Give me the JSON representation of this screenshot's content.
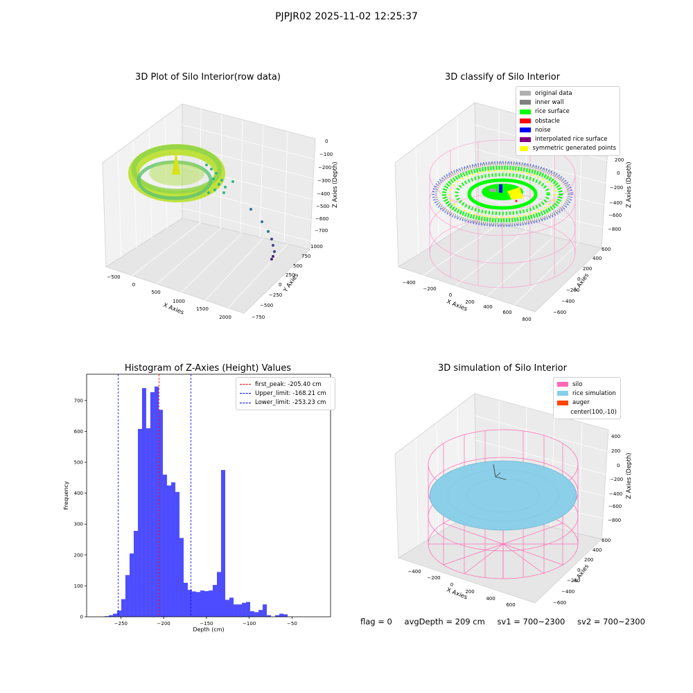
{
  "suptitle": "PJPJR02 2025-11-02 12:25:37",
  "plots": {
    "raw": {
      "title": "3D Plot of Silo Interior(row data)",
      "xlabel": "X Axies",
      "ylabel": "Y Axies",
      "zlabel": "Z Axies (Depth)",
      "xticks": [
        "−500",
        "0",
        "500",
        "1000",
        "1500",
        "2000"
      ],
      "yticks": [
        "−750",
        "−500",
        "−250",
        "0",
        "250",
        "500",
        "750",
        "1000"
      ],
      "zticks": [
        "0",
        "−100",
        "−200",
        "−300",
        "−400",
        "−500",
        "−600",
        "−700"
      ]
    },
    "classify": {
      "title": "3D classify of Silo Interior",
      "xlabel": "X Axies",
      "ylabel": "Y Axies",
      "zlabel": "Z Axies (Depth)",
      "xticks": [
        "−400",
        "−200",
        "0",
        "200",
        "400",
        "600",
        "800"
      ],
      "yticks": [
        "−600",
        "−400",
        "−200",
        "0",
        "200",
        "400",
        "600"
      ],
      "zticks": [
        "200",
        "0",
        "−200",
        "−400",
        "−600",
        "−800"
      ],
      "legend": [
        {
          "label": "original data",
          "color": "#b0b0b0"
        },
        {
          "label": "inner wall",
          "color": "#808080"
        },
        {
          "label": "rice surface",
          "color": "#00ff00"
        },
        {
          "label": "obstacle",
          "color": "#ff0000"
        },
        {
          "label": "noise",
          "color": "#0000ff"
        },
        {
          "label": "interpolated rice surface",
          "color": "#800080"
        },
        {
          "label": "symmetric generated points",
          "color": "#ffff00"
        }
      ]
    },
    "simulation": {
      "title": "3D simulation of Silo Interior",
      "xlabel": "X Axies",
      "ylabel": "Y Axies",
      "zlabel": "Z Axies (Depth)",
      "xticks": [
        "−400",
        "−200",
        "0",
        "200",
        "400",
        "600"
      ],
      "yticks": [
        "−600",
        "−400",
        "−200",
        "0",
        "200",
        "400",
        "600"
      ],
      "zticks": [
        "400",
        "200",
        "0",
        "−200",
        "−400",
        "−600",
        "−800"
      ],
      "legend": [
        {
          "label": "silo",
          "color": "#ff69b4"
        },
        {
          "label": "rice simulation",
          "color": "#87ceeb"
        },
        {
          "label": "auger",
          "color": "#ff4500"
        },
        {
          "label": "center(100,-10)",
          "color": ""
        }
      ]
    }
  },
  "chart_data": {
    "type": "bar",
    "title": "Histogram of Z-Axies (Height) Values",
    "xlabel": "Depth (cm)",
    "ylabel": "Frequency",
    "xlim": [
      -290,
      -5
    ],
    "ylim": [
      0,
      785
    ],
    "xticks": [
      -250,
      -200,
      -150,
      -100,
      -50
    ],
    "yticks": [
      0,
      100,
      200,
      300,
      400,
      500,
      600,
      700
    ],
    "bar_color": "#4d4dff",
    "bin_start": -269,
    "bin_width": 4.86,
    "values": [
      2,
      5,
      10,
      20,
      57,
      135,
      205,
      278,
      608,
      740,
      610,
      727,
      745,
      670,
      460,
      425,
      435,
      404,
      255,
      110,
      87,
      82,
      80,
      85,
      83,
      85,
      103,
      145,
      475,
      55,
      62,
      40,
      40,
      45,
      48,
      18,
      15,
      22,
      40,
      5,
      0,
      5,
      10,
      8
    ],
    "vlines": [
      {
        "label": "first_peak: -205.40 cm",
        "x": -205.4,
        "color": "#ff0000"
      },
      {
        "label": "Upper_limit: -168.21 cm",
        "x": -168.21,
        "color": "#0000ff"
      },
      {
        "label": "Lower_limit: -253.23 cm",
        "x": -253.23,
        "color": "#0000ff"
      }
    ]
  },
  "footer": {
    "flag": "flag = 0",
    "avg": "avgDepth = 209 cm",
    "sv1": "sv1 = 700~2300",
    "sv2": "sv2 = 700~2300"
  }
}
